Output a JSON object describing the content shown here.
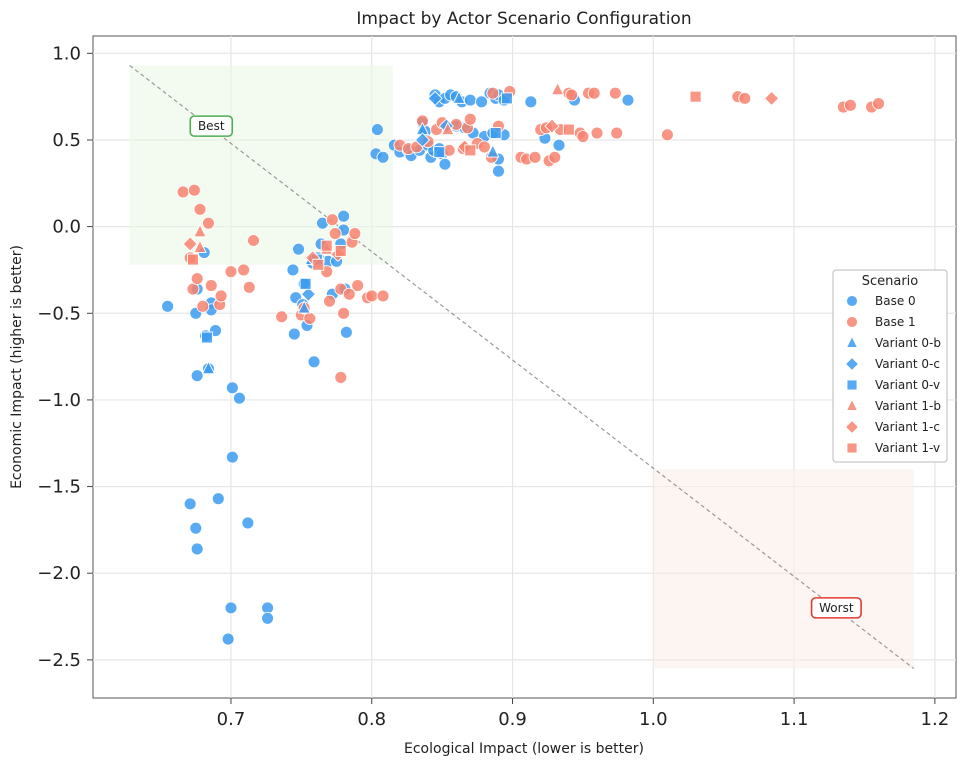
{
  "chart_data": {
    "type": "scatter",
    "title": "Impact by Actor Scenario Configuration",
    "xlabel": "Ecological Impact (lower is better)",
    "ylabel": "Economic Impact (higher is better)",
    "xlim": [
      0.602,
      1.215
    ],
    "ylim": [
      -2.72,
      1.1
    ],
    "xticks": [
      0.7,
      0.8,
      0.9,
      1.0,
      1.1,
      1.2
    ],
    "xtick_labels": [
      "0.7",
      "0.8",
      "0.9",
      "1.0",
      "1.1",
      "1.2"
    ],
    "yticks": [
      1.0,
      0.5,
      0.0,
      -0.5,
      -1.0,
      -1.5,
      -2.0,
      -2.5
    ],
    "ytick_labels": [
      "1.0",
      "0.5",
      "0.0",
      "−0.5",
      "−1.0",
      "−1.5",
      "−2.0",
      "−2.5"
    ],
    "grid": true,
    "legend_title": "Scenario",
    "legend_position": "center-right",
    "colors": {
      "base0": "#3b9bf0",
      "base1": "#f7826e",
      "reference_line": "#999999",
      "best_region": "#eaf7e6",
      "worst_region": "#fbece6",
      "best_border": "#4caf50",
      "worst_border": "#e53935"
    },
    "reference_line": {
      "from": [
        0.628,
        0.93
      ],
      "to": [
        1.185,
        -2.55
      ]
    },
    "regions": [
      {
        "name": "best",
        "x": [
          0.628,
          0.815
        ],
        "y": [
          -0.22,
          0.93
        ]
      },
      {
        "name": "worst",
        "x": [
          1.0,
          1.185
        ],
        "y": [
          -2.55,
          -1.4
        ]
      }
    ],
    "annotations": [
      {
        "text": "Best",
        "x": 0.686,
        "y": 0.58,
        "style": "best"
      },
      {
        "text": "Worst",
        "x": 1.13,
        "y": -2.2,
        "style": "worst"
      }
    ],
    "series": [
      {
        "name": "Base 0",
        "marker": "circle",
        "color": "#3b9bf0",
        "points": [
          [
            0.655,
            -0.46
          ],
          [
            0.675,
            -0.5
          ],
          [
            0.676,
            -0.36
          ],
          [
            0.681,
            -0.15
          ],
          [
            0.682,
            -0.63
          ],
          [
            0.686,
            -0.44
          ],
          [
            0.686,
            -0.48
          ],
          [
            0.689,
            -0.6
          ],
          [
            0.676,
            -0.86
          ],
          [
            0.684,
            -0.82
          ],
          [
            0.701,
            -0.93
          ],
          [
            0.706,
            -0.99
          ],
          [
            0.701,
            -1.33
          ],
          [
            0.671,
            -1.6
          ],
          [
            0.675,
            -1.74
          ],
          [
            0.676,
            -1.86
          ],
          [
            0.691,
            -1.57
          ],
          [
            0.712,
            -1.71
          ],
          [
            0.7,
            -2.2
          ],
          [
            0.698,
            -2.38
          ],
          [
            0.726,
            -2.2
          ],
          [
            0.726,
            -2.26
          ],
          [
            0.744,
            -0.25
          ],
          [
            0.748,
            -0.13
          ],
          [
            0.746,
            -0.41
          ],
          [
            0.745,
            -0.62
          ],
          [
            0.751,
            -0.45
          ],
          [
            0.754,
            -0.57
          ],
          [
            0.752,
            -0.33
          ],
          [
            0.759,
            -0.78
          ],
          [
            0.764,
            -0.1
          ],
          [
            0.769,
            -0.2
          ],
          [
            0.765,
            0.02
          ],
          [
            0.772,
            -0.39
          ],
          [
            0.775,
            -0.2
          ],
          [
            0.778,
            -0.1
          ],
          [
            0.78,
            0.06
          ],
          [
            0.78,
            -0.02
          ],
          [
            0.781,
            -0.36
          ],
          [
            0.782,
            -0.61
          ],
          [
            0.758,
            -0.21
          ],
          [
            0.762,
            -0.18
          ],
          [
            0.803,
            0.42
          ],
          [
            0.804,
            0.56
          ],
          [
            0.808,
            0.4
          ],
          [
            0.816,
            0.47
          ],
          [
            0.82,
            0.43
          ],
          [
            0.826,
            0.44
          ],
          [
            0.828,
            0.41
          ],
          [
            0.834,
            0.44
          ],
          [
            0.836,
            0.6
          ],
          [
            0.838,
            0.55
          ],
          [
            0.84,
            0.47
          ],
          [
            0.842,
            0.4
          ],
          [
            0.844,
            0.44
          ],
          [
            0.848,
            0.45
          ],
          [
            0.85,
            0.42
          ],
          [
            0.852,
            0.36
          ],
          [
            0.845,
            0.76
          ],
          [
            0.848,
            0.72
          ],
          [
            0.852,
            0.74
          ],
          [
            0.856,
            0.76
          ],
          [
            0.86,
            0.75
          ],
          [
            0.864,
            0.72
          ],
          [
            0.87,
            0.73
          ],
          [
            0.878,
            0.72
          ],
          [
            0.884,
            0.77
          ],
          [
            0.888,
            0.74
          ],
          [
            0.89,
            0.76
          ],
          [
            0.894,
            0.73
          ],
          [
            0.86,
            0.58
          ],
          [
            0.866,
            0.57
          ],
          [
            0.872,
            0.54
          ],
          [
            0.88,
            0.52
          ],
          [
            0.886,
            0.54
          ],
          [
            0.894,
            0.53
          ],
          [
            0.89,
            0.39
          ],
          [
            0.89,
            0.32
          ],
          [
            0.913,
            0.72
          ],
          [
            0.923,
            0.51
          ],
          [
            0.933,
            0.47
          ],
          [
            0.944,
            0.73
          ],
          [
            0.982,
            0.73
          ]
        ]
      },
      {
        "name": "Base 1",
        "marker": "circle",
        "color": "#f7826e",
        "points": [
          [
            0.666,
            0.2
          ],
          [
            0.674,
            0.21
          ],
          [
            0.678,
            0.1
          ],
          [
            0.684,
            0.02
          ],
          [
            0.671,
            -0.18
          ],
          [
            0.673,
            -0.36
          ],
          [
            0.676,
            -0.3
          ],
          [
            0.68,
            -0.46
          ],
          [
            0.686,
            -0.34
          ],
          [
            0.692,
            -0.45
          ],
          [
            0.693,
            -0.4
          ],
          [
            0.7,
            -0.26
          ],
          [
            0.709,
            -0.25
          ],
          [
            0.713,
            -0.35
          ],
          [
            0.716,
            -0.08
          ],
          [
            0.736,
            -0.52
          ],
          [
            0.75,
            -0.51
          ],
          [
            0.752,
            -0.47
          ],
          [
            0.756,
            -0.53
          ],
          [
            0.762,
            -0.2
          ],
          [
            0.768,
            -0.26
          ],
          [
            0.77,
            -0.43
          ],
          [
            0.772,
            0.04
          ],
          [
            0.774,
            -0.04
          ],
          [
            0.778,
            -0.36
          ],
          [
            0.78,
            -0.5
          ],
          [
            0.784,
            -0.39
          ],
          [
            0.786,
            -0.09
          ],
          [
            0.788,
            -0.04
          ],
          [
            0.79,
            -0.34
          ],
          [
            0.797,
            -0.41
          ],
          [
            0.8,
            -0.4
          ],
          [
            0.808,
            -0.4
          ],
          [
            0.778,
            -0.87
          ],
          [
            0.82,
            0.47
          ],
          [
            0.826,
            0.45
          ],
          [
            0.832,
            0.46
          ],
          [
            0.836,
            0.61
          ],
          [
            0.84,
            0.49
          ],
          [
            0.846,
            0.56
          ],
          [
            0.85,
            0.6
          ],
          [
            0.855,
            0.44
          ],
          [
            0.86,
            0.59
          ],
          [
            0.865,
            0.45
          ],
          [
            0.868,
            0.57
          ],
          [
            0.87,
            0.62
          ],
          [
            0.875,
            0.48
          ],
          [
            0.88,
            0.46
          ],
          [
            0.885,
            0.4
          ],
          [
            0.886,
            0.77
          ],
          [
            0.89,
            0.58
          ],
          [
            0.898,
            0.78
          ],
          [
            0.906,
            0.4
          ],
          [
            0.91,
            0.39
          ],
          [
            0.916,
            0.4
          ],
          [
            0.92,
            0.56
          ],
          [
            0.924,
            0.57
          ],
          [
            0.926,
            0.38
          ],
          [
            0.93,
            0.4
          ],
          [
            0.934,
            0.56
          ],
          [
            0.94,
            0.77
          ],
          [
            0.942,
            0.76
          ],
          [
            0.948,
            0.54
          ],
          [
            0.95,
            0.52
          ],
          [
            0.954,
            0.77
          ],
          [
            0.958,
            0.77
          ],
          [
            0.96,
            0.54
          ],
          [
            0.973,
            0.77
          ],
          [
            0.974,
            0.54
          ],
          [
            1.01,
            0.53
          ],
          [
            1.06,
            0.75
          ],
          [
            1.065,
            0.74
          ],
          [
            1.135,
            0.69
          ],
          [
            1.14,
            0.7
          ],
          [
            1.155,
            0.69
          ],
          [
            1.16,
            0.71
          ]
        ]
      },
      {
        "name": "Variant 0-b",
        "marker": "triangle",
        "color": "#3b9bf0",
        "points": [
          [
            0.684,
            -0.82
          ],
          [
            0.752,
            -0.47
          ],
          [
            0.757,
            -0.19
          ],
          [
            0.836,
            0.56
          ],
          [
            0.862,
            0.74
          ],
          [
            0.886,
            0.43
          ]
        ]
      },
      {
        "name": "Variant 0-c",
        "marker": "diamond",
        "color": "#3b9bf0",
        "points": [
          [
            0.755,
            -0.39
          ],
          [
            0.836,
            0.5
          ],
          [
            0.845,
            0.74
          ],
          [
            0.853,
            0.58
          ]
        ]
      },
      {
        "name": "Variant 0-v",
        "marker": "square",
        "color": "#3b9bf0",
        "points": [
          [
            0.683,
            -0.64
          ],
          [
            0.753,
            -0.33
          ],
          [
            0.761,
            -0.19
          ],
          [
            0.848,
            0.43
          ],
          [
            0.888,
            0.54
          ],
          [
            0.896,
            0.74
          ]
        ]
      },
      {
        "name": "Variant 1-b",
        "marker": "triangle",
        "color": "#f7826e",
        "points": [
          [
            0.678,
            -0.03
          ],
          [
            0.678,
            -0.12
          ],
          [
            0.768,
            -0.13
          ],
          [
            0.854,
            0.56
          ],
          [
            0.932,
            0.79
          ]
        ]
      },
      {
        "name": "Variant 1-c",
        "marker": "diamond",
        "color": "#f7826e",
        "points": [
          [
            0.671,
            -0.1
          ],
          [
            0.758,
            -0.18
          ],
          [
            0.776,
            -0.16
          ],
          [
            0.866,
            0.46
          ],
          [
            0.928,
            0.58
          ],
          [
            1.084,
            0.74
          ]
        ]
      },
      {
        "name": "Variant 1-v",
        "marker": "square",
        "color": "#f7826e",
        "points": [
          [
            0.673,
            -0.19
          ],
          [
            0.762,
            -0.22
          ],
          [
            0.768,
            -0.11
          ],
          [
            0.778,
            -0.14
          ],
          [
            0.87,
            0.44
          ],
          [
            0.94,
            0.56
          ],
          [
            1.03,
            0.75
          ]
        ]
      }
    ]
  }
}
